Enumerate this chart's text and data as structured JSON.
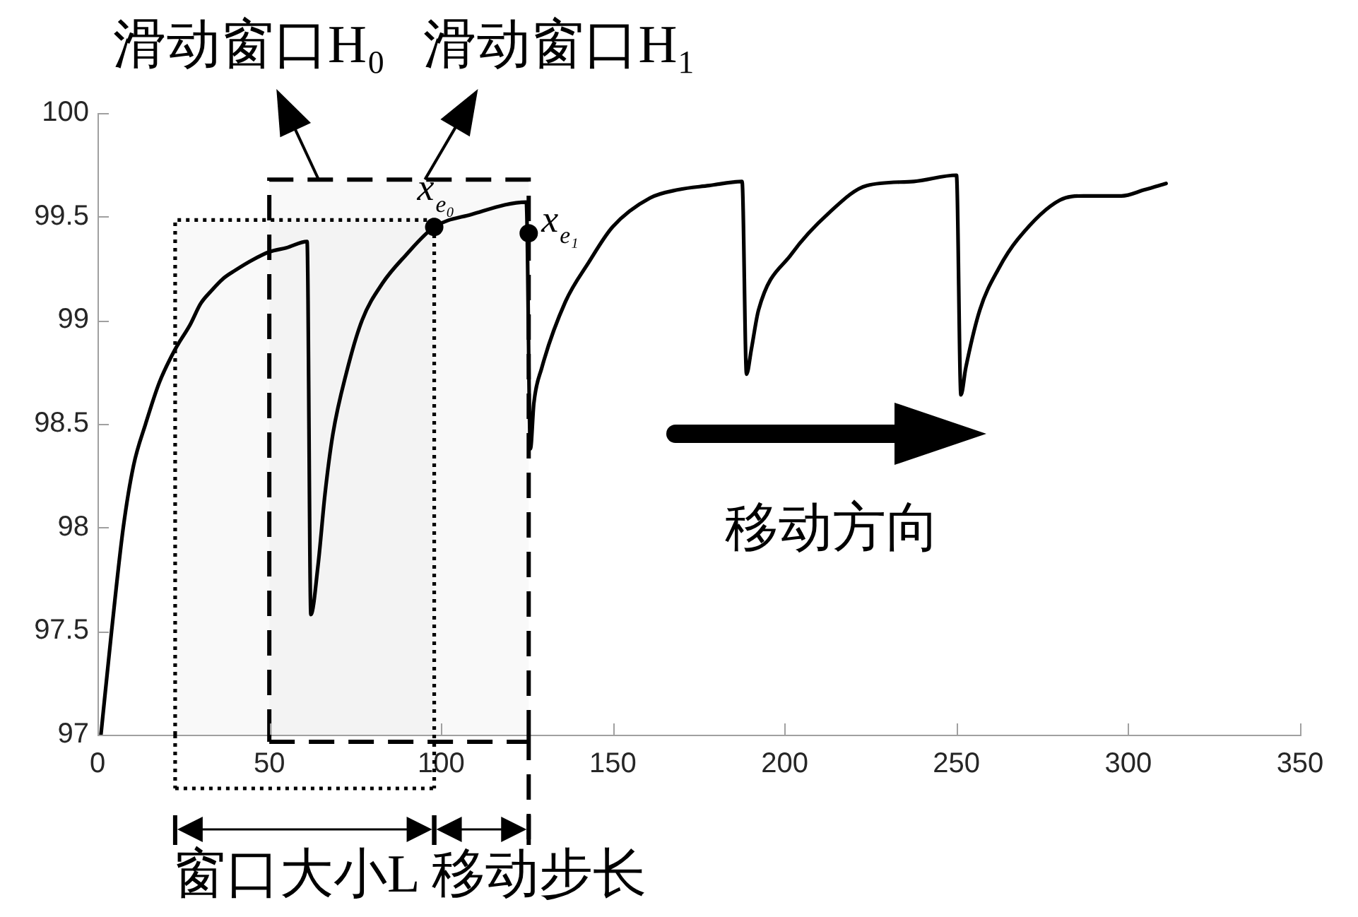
{
  "chart_data": {
    "type": "line",
    "series": [
      {
        "color": "#000000",
        "marker": "none",
        "x": [
          1,
          4.1,
          7.5,
          10.5,
          14,
          18,
          22.6,
          27,
          30,
          33,
          36.5,
          40,
          45,
          50,
          55,
          61,
          62.1,
          64.2,
          66.2,
          68.5,
          72.5,
          77,
          83,
          89.5,
          98,
          108.7,
          124.8,
          126,
          127,
          129.3,
          136.2,
          143,
          149.9,
          160.8,
          169,
          178,
          187.6,
          188.9,
          190.3,
          192.4,
          202,
          213,
          223.9,
          237.6,
          250,
          251.3,
          252.7,
          256.8,
          262.3,
          267.8,
          280.1,
          287,
          298,
          304.8,
          311
        ],
        "values": [
          97,
          97.5,
          98,
          98.3,
          98.5,
          98.7,
          98.86,
          98.98,
          99.08,
          99.14,
          99.2,
          99.24,
          99.29,
          99.33,
          99.35,
          99.38,
          97.58,
          97.82,
          98.16,
          98.45,
          98.75,
          99,
          99.18,
          99.31,
          99.45,
          99.51,
          99.57,
          98.38,
          98.6,
          98.77,
          99.09,
          99.28,
          99.45,
          99.59,
          99.63,
          99.65,
          99.67,
          98.74,
          98.86,
          99.05,
          99.32,
          99.52,
          99.65,
          99.67,
          99.7,
          98.64,
          98.77,
          99.05,
          99.25,
          99.39,
          99.58,
          99.6,
          99.6,
          99.63,
          99.66
        ]
      },
      {
        "type": "scatter",
        "color": "#000000",
        "marker": "circle",
        "x": [
          98,
          125.5
        ],
        "values": [
          99.45,
          99.42
        ]
      }
    ],
    "xlim": [
      0,
      350
    ],
    "xticks": [
      0,
      50,
      100,
      150,
      200,
      250,
      300,
      350
    ],
    "ylim": [
      97,
      100
    ],
    "yticks": [
      97,
      97.5,
      98,
      98.5,
      99,
      99.5,
      100
    ],
    "bands": [
      {
        "axis": "x",
        "from": 22.6,
        "to": 98,
        "label": "滑动窗口H₀",
        "color": "#000000"
      },
      {
        "axis": "x",
        "from": 50,
        "to": 125.5,
        "label": "滑动窗口H₁",
        "color": "#000000"
      }
    ],
    "annotations": [
      {
        "text": "x$_{e₀}$",
        "x": 98,
        "y": 99.45
      },
      {
        "text": "x$_{e₁}$",
        "x": 125.5,
        "y": 99.42
      },
      "移动方向",
      "窗口大小L",
      "移动步长"
    ]
  }
}
